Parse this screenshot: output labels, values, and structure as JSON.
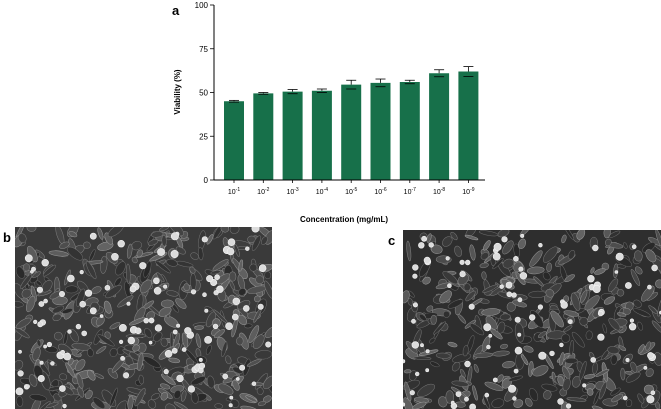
{
  "panels": {
    "a": "a",
    "b": "b",
    "c": "c"
  },
  "chart_data": {
    "type": "bar",
    "categories": [
      {
        "base": "10",
        "exp": "-1"
      },
      {
        "base": "10",
        "exp": "-2"
      },
      {
        "base": "10",
        "exp": "-3"
      },
      {
        "base": "10",
        "exp": "-4"
      },
      {
        "base": "10",
        "exp": "-5"
      },
      {
        "base": "10",
        "exp": "-6"
      },
      {
        "base": "10",
        "exp": "-7"
      },
      {
        "base": "10",
        "exp": "-8"
      },
      {
        "base": "10",
        "exp": "-9"
      }
    ],
    "values": [
      45,
      49.5,
      50.5,
      51,
      54.5,
      55.5,
      56,
      61,
      62
    ],
    "errors": [
      0.5,
      0.5,
      1.2,
      1.0,
      2.5,
      2.2,
      1.0,
      2.0,
      2.8
    ],
    "xlabel": "Concentration (mg/mL)",
    "ylabel": "Viability (%)",
    "ylim": [
      0,
      100
    ],
    "yticks": [
      "0",
      "25",
      "50",
      "75",
      "100"
    ],
    "bar_color": "#17704a",
    "grid": false
  },
  "micrographs": [
    {
      "panel": "b",
      "description_color": "#3a3a3a"
    },
    {
      "panel": "c",
      "description_color": "#2e2e2e"
    }
  ]
}
